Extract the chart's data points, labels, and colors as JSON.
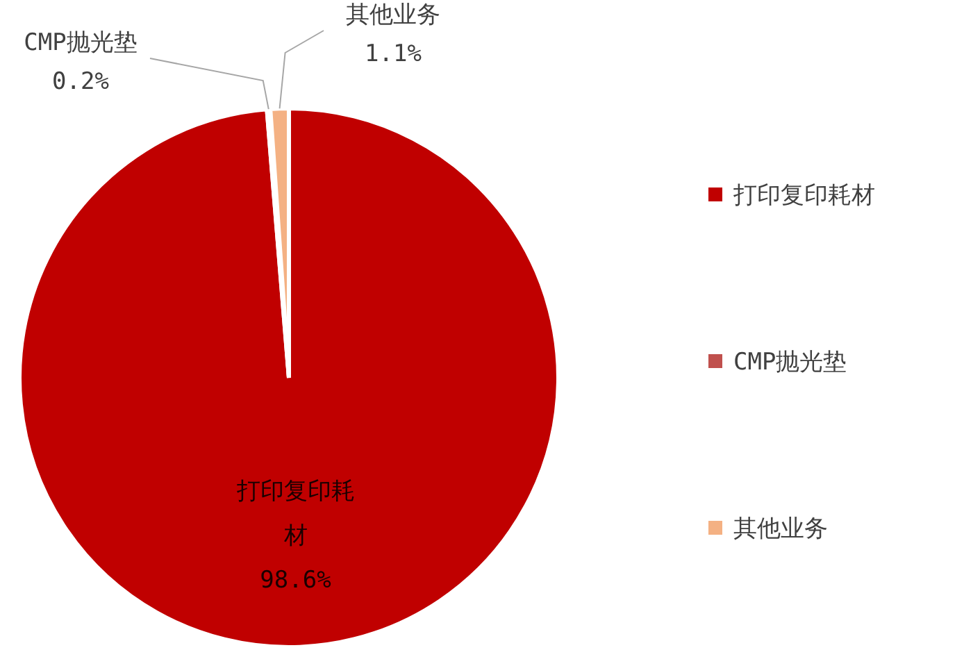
{
  "chart_data": {
    "type": "pie",
    "categories": [
      "打印复印耗材",
      "CMP抛光垫",
      "其他业务"
    ],
    "values": [
      98.6,
      0.2,
      1.1
    ],
    "colors": [
      "#c00000",
      "#c0504d",
      "#f4b183"
    ],
    "value_labels": [
      "98.6%",
      "0.2%",
      "1.1%"
    ],
    "legend": "right"
  }
}
